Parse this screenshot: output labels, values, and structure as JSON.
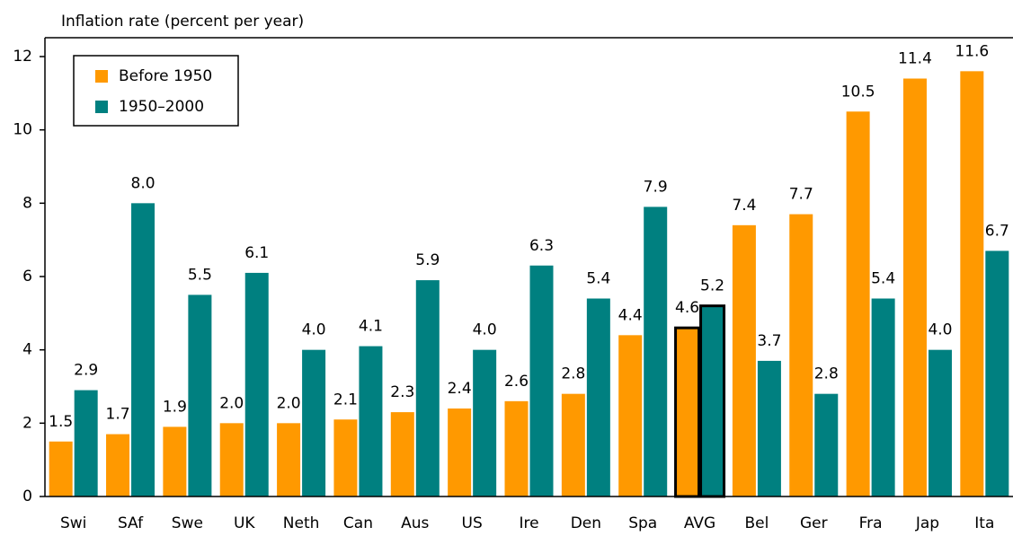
{
  "chart_data": {
    "type": "bar",
    "y_axis_title": "Inflation rate (percent per year)",
    "categories": [
      "Swi",
      "SAf",
      "Swe",
      "UK",
      "Neth",
      "Can",
      "Aus",
      "US",
      "Ire",
      "Den",
      "Spa",
      "AVG",
      "Bel",
      "Ger",
      "Fra",
      "Jap",
      "Ita"
    ],
    "series": [
      {
        "name": "Before 1950",
        "color": "#ff9900",
        "values": [
          1.5,
          1.7,
          1.9,
          2.0,
          2.0,
          2.1,
          2.3,
          2.4,
          2.6,
          2.8,
          4.4,
          4.6,
          7.4,
          7.7,
          10.5,
          11.4,
          11.6
        ],
        "value_labels": [
          "1.5",
          "1.7",
          "1.9",
          "2.0",
          "2.0",
          "2.1",
          "2.3",
          "2.4",
          "2.6",
          "2.8",
          "4.4",
          "4.6",
          "7.4",
          "7.7",
          "10.5",
          "11.4",
          "11.6"
        ]
      },
      {
        "name": "1950–2000",
        "color": "#008080",
        "values": [
          2.9,
          8.0,
          5.5,
          6.1,
          4.0,
          4.1,
          5.9,
          4.0,
          6.3,
          5.4,
          7.9,
          5.2,
          3.7,
          2.8,
          5.4,
          4.0,
          6.7
        ],
        "value_labels": [
          "2.9",
          "8.0",
          "5.5",
          "6.1",
          "4.0",
          "4.1",
          "5.9",
          "4.0",
          "6.3",
          "5.4",
          "7.9",
          "5.2",
          "3.7",
          "2.8",
          "5.4",
          "4.0",
          "6.7"
        ]
      }
    ],
    "highlight_category": "AVG",
    "ylim": [
      0,
      12
    ],
    "yticks": [
      0,
      2,
      4,
      6,
      8,
      10,
      12
    ]
  }
}
